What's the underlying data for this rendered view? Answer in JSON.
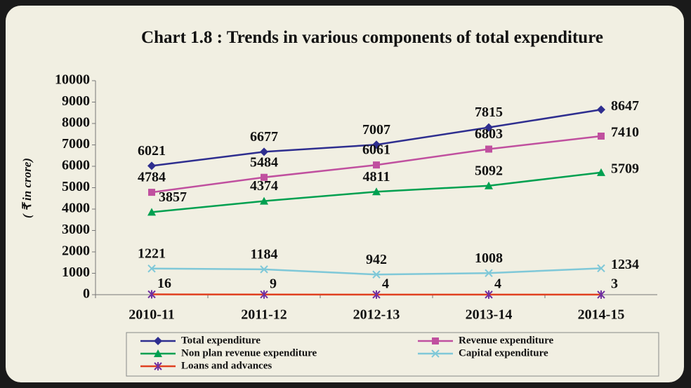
{
  "chart_data": {
    "type": "line",
    "title": "Chart 1.8 :  Trends in various components of total expenditure",
    "y_label": "( ₹ in crore)",
    "categories": [
      "2010-11",
      "2011-12",
      "2012-13",
      "2013-14",
      "2014-15"
    ],
    "ylim": [
      0,
      10000
    ],
    "yticks": [
      0,
      1000,
      2000,
      3000,
      4000,
      5000,
      6000,
      7000,
      8000,
      9000,
      10000
    ],
    "series": [
      {
        "name": "Total expenditure",
        "color": "#2e2e8f",
        "marker": "diamond",
        "values": [
          6021,
          6677,
          7007,
          7815,
          8647
        ]
      },
      {
        "name": "Revenue expenditure",
        "color": "#c0509f",
        "marker": "square",
        "values": [
          4784,
          5484,
          6061,
          6803,
          7410
        ]
      },
      {
        "name": "Non plan revenue expenditure",
        "color": "#00a050",
        "marker": "triangle",
        "values": [
          3857,
          4374,
          4811,
          5092,
          5709
        ]
      },
      {
        "name": "Capital expenditure",
        "color": "#7fc8d8",
        "marker": "x",
        "values": [
          1221,
          1184,
          942,
          1008,
          1234
        ]
      },
      {
        "name": "Loans and advances",
        "color": "#e04020",
        "marker": "asterisk",
        "values": [
          16,
          9,
          4,
          4,
          3
        ]
      }
    ]
  }
}
